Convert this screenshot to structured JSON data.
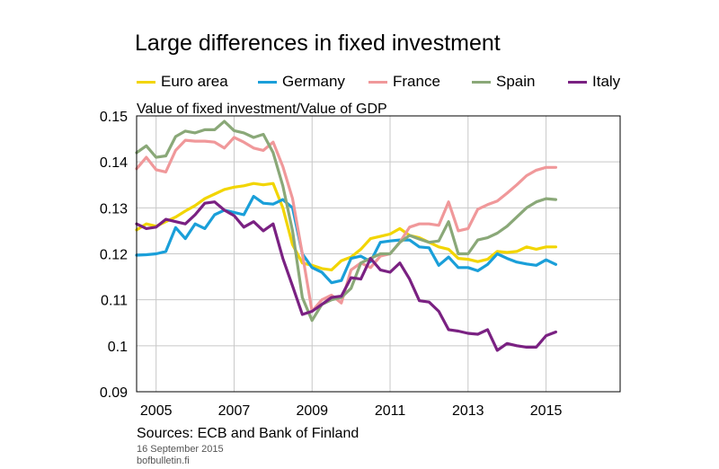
{
  "chart_data": {
    "type": "line",
    "title": "Large differences in fixed investment",
    "ylabel": "Value of fixed investment/Value of GDP",
    "xlabel": "",
    "ylim": [
      0.09,
      0.15
    ],
    "xlim": [
      2004.5,
      2016.9
    ],
    "y_ticks": [
      0.09,
      0.1,
      0.11,
      0.12,
      0.13,
      0.14,
      0.15
    ],
    "y_tick_labels": [
      "0.09",
      "0.1",
      "0.11",
      "0.12",
      "0.13",
      "0.14",
      "0.15"
    ],
    "x_ticks": [
      2005,
      2007,
      2009,
      2011,
      2013,
      2015
    ],
    "x_tick_labels": [
      "2005",
      "2007",
      "2009",
      "2011",
      "2013",
      "2015"
    ],
    "x_start": 2004.5,
    "x_step": 0.25,
    "grid": true,
    "legend_position": "top",
    "series": [
      {
        "name": "Euro area",
        "color": "#f2d500",
        "values": [
          0.1252,
          0.1265,
          0.126,
          0.127,
          0.128,
          0.1293,
          0.1305,
          0.132,
          0.133,
          0.134,
          0.1345,
          0.1348,
          0.1353,
          0.135,
          0.1353,
          0.13,
          0.122,
          0.118,
          0.1175,
          0.1168,
          0.1165,
          0.1185,
          0.1193,
          0.121,
          0.1233,
          0.1238,
          0.1243,
          0.1255,
          0.124,
          0.1235,
          0.1225,
          0.1215,
          0.121,
          0.119,
          0.1188,
          0.1183,
          0.1188,
          0.1205,
          0.1203,
          0.1205,
          0.1215,
          0.121,
          0.1215,
          0.1215
        ]
      },
      {
        "name": "Germany",
        "color": "#1a9fd9",
        "values": [
          0.1197,
          0.1198,
          0.12,
          0.1205,
          0.1257,
          0.1233,
          0.1265,
          0.1255,
          0.1285,
          0.1295,
          0.129,
          0.1285,
          0.1325,
          0.131,
          0.1308,
          0.1318,
          0.13,
          0.12,
          0.117,
          0.116,
          0.1137,
          0.1142,
          0.119,
          0.1195,
          0.1183,
          0.1225,
          0.1228,
          0.123,
          0.123,
          0.1215,
          0.1213,
          0.1175,
          0.1193,
          0.117,
          0.117,
          0.1163,
          0.1177,
          0.12,
          0.119,
          0.1182,
          0.1178,
          0.1175,
          0.1187,
          0.1177
        ]
      },
      {
        "name": "France",
        "color": "#f0989a",
        "values": [
          0.1385,
          0.141,
          0.1383,
          0.1378,
          0.1425,
          0.1447,
          0.1445,
          0.1445,
          0.1443,
          0.143,
          0.1453,
          0.1443,
          0.143,
          0.1425,
          0.1443,
          0.139,
          0.132,
          0.12,
          0.1075,
          0.11,
          0.111,
          0.1093,
          0.1165,
          0.118,
          0.117,
          0.1195,
          0.12,
          0.1225,
          0.1258,
          0.1265,
          0.1265,
          0.1262,
          0.1313,
          0.125,
          0.1255,
          0.1297,
          0.1307,
          0.1315,
          0.1332,
          0.135,
          0.137,
          0.1382,
          0.1388,
          0.1388
        ]
      },
      {
        "name": "Spain",
        "color": "#8aa878",
        "values": [
          0.142,
          0.1435,
          0.141,
          0.1413,
          0.1455,
          0.1467,
          0.1463,
          0.147,
          0.147,
          0.1488,
          0.1468,
          0.1463,
          0.1453,
          0.146,
          0.142,
          0.1348,
          0.125,
          0.1105,
          0.1055,
          0.109,
          0.11,
          0.1105,
          0.1125,
          0.118,
          0.119,
          0.12,
          0.12,
          0.1225,
          0.124,
          0.1232,
          0.1225,
          0.1228,
          0.127,
          0.12,
          0.12,
          0.123,
          0.1235,
          0.1245,
          0.126,
          0.128,
          0.13,
          0.1313,
          0.132,
          0.1318
        ]
      },
      {
        "name": "Italy",
        "color": "#7a2182",
        "values": [
          0.1265,
          0.1255,
          0.1258,
          0.1275,
          0.127,
          0.1265,
          0.1285,
          0.131,
          0.1313,
          0.1295,
          0.1283,
          0.1258,
          0.127,
          0.125,
          0.1265,
          0.119,
          0.113,
          0.1068,
          0.1075,
          0.109,
          0.1105,
          0.1108,
          0.1148,
          0.1145,
          0.119,
          0.1165,
          0.116,
          0.118,
          0.1145,
          0.1098,
          0.1095,
          0.1075,
          0.1035,
          0.1032,
          0.1027,
          0.1025,
          0.1035,
          0.099,
          0.1005,
          0.1,
          0.0997,
          0.0997,
          0.1022,
          0.103
        ]
      }
    ]
  },
  "footer": {
    "sources": "Sources: ECB and Bank of Finland",
    "date": "16 September 2015",
    "site": "bofbulletin.fi"
  }
}
